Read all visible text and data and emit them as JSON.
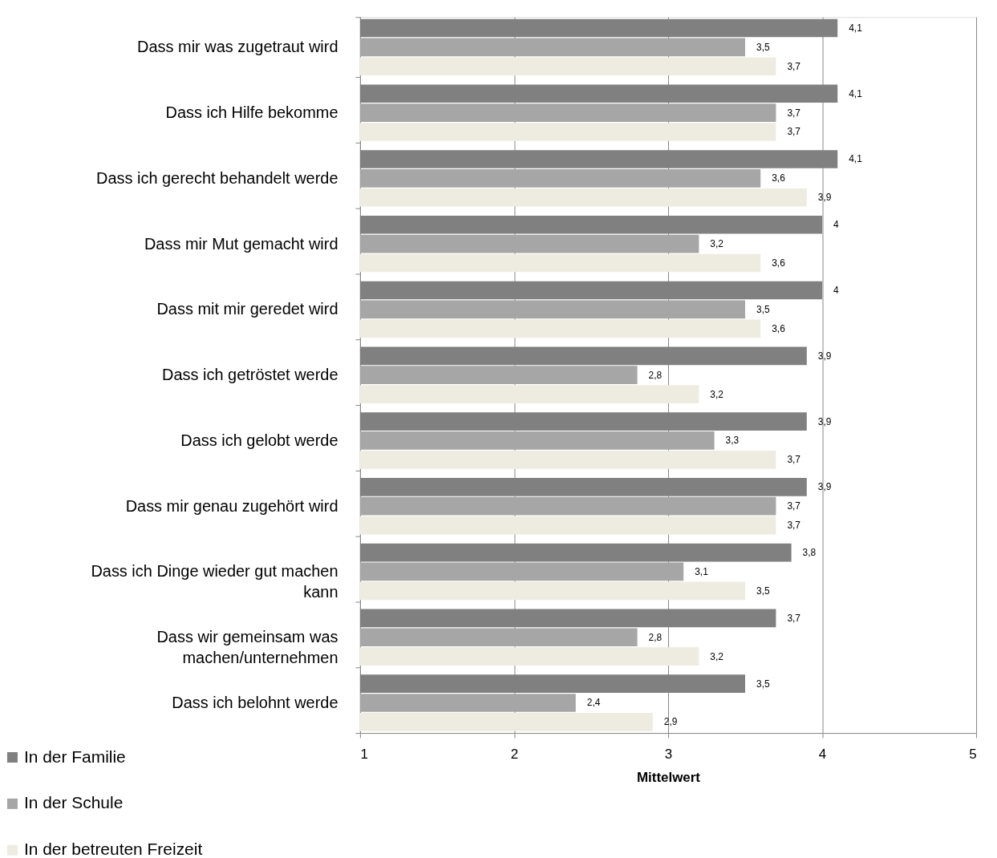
{
  "chart_data": {
    "type": "bar",
    "orientation": "horizontal",
    "xlabel": "Mittelwert",
    "categories": [
      "Dass mir was zugetraut wird",
      "Dass ich Hilfe bekomme",
      "Dass ich gerecht behandelt werde",
      "Dass mir Mut gemacht wird",
      "Dass mit mir geredet wird",
      "Dass ich getröstet werde",
      "Dass ich gelobt werde",
      "Dass mir genau zugehört wird",
      "Dass ich Dinge wieder gut machen kann",
      "Dass wir gemeinsam was machen/unternehmen",
      "Dass ich belohnt werde"
    ],
    "series": [
      {
        "name": "In der Familie",
        "color": "#808080",
        "values": [
          4.1,
          4.1,
          4.1,
          4,
          4,
          3.9,
          3.9,
          3.9,
          3.8,
          3.7,
          3.5
        ],
        "value_labels": [
          "4,1",
          "4,1",
          "4,1",
          "4",
          "4",
          "3,9",
          "3,9",
          "3,9",
          "3,8",
          "3,7",
          "3,5"
        ]
      },
      {
        "name": "In der Schule",
        "color": "#a6a6a6",
        "values": [
          3.5,
          3.7,
          3.6,
          3.2,
          3.5,
          2.8,
          3.3,
          3.7,
          3.1,
          2.8,
          2.4
        ],
        "value_labels": [
          "3,5",
          "3,7",
          "3,6",
          "3,2",
          "3,5",
          "2,8",
          "3,3",
          "3,7",
          "3,1",
          "2,8",
          "2,4"
        ]
      },
      {
        "name": "In der betreuten Freizeit",
        "color": "#eeece1",
        "values": [
          3.7,
          3.7,
          3.9,
          3.6,
          3.6,
          3.2,
          3.7,
          3.7,
          3.5,
          3.2,
          2.9
        ],
        "value_labels": [
          "3,7",
          "3,7",
          "3,9",
          "3,6",
          "3,6",
          "3,2",
          "3,7",
          "3,7",
          "3,5",
          "3,2",
          "2,9"
        ]
      }
    ],
    "xlim": [
      1,
      5
    ],
    "xticks": [
      1,
      2,
      3,
      4,
      5
    ],
    "grid": "x",
    "legend": "bottom left"
  }
}
